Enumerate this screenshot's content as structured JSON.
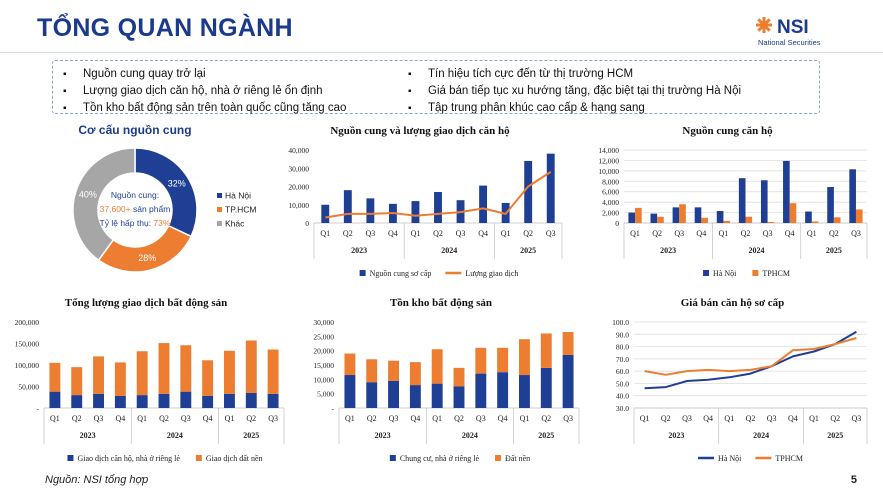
{
  "header": {
    "title": "TỔNG QUAN NGÀNH",
    "logo_text": "NSI",
    "logo_subtext": "National Securities"
  },
  "bullets": {
    "left": [
      "Nguồn cung quay trở lại",
      "Lượng giao dịch căn hộ, nhà ở riêng lẻ ổn định",
      "Tồn kho bất động sản trên toàn quốc cũng tăng cao"
    ],
    "right": [
      "Tín hiệu tích cực đến từ thị trường HCM",
      "Giá bán tiếp tục xu hướng tăng, đặc biệt tại thị trường Hà Nội",
      "Tập trung phân khúc cao cấp & hạng sang"
    ]
  },
  "chart_data": [
    {
      "type": "pie",
      "title": "Cơ cấu nguồn cung",
      "categories": [
        "Hà Nội",
        "TP.HCM",
        "Khác"
      ],
      "values": [
        32,
        28,
        40
      ],
      "value_labels": [
        "32%",
        "28%",
        "40%"
      ],
      "colors": [
        "#1f3f94",
        "#ed7d31",
        "#a6a6a6"
      ],
      "center_text": [
        [
          {
            "text": "Nguồn cung:",
            "color": "#1f3f94"
          }
        ],
        [
          {
            "text": "37,600+",
            "color": "#ed7d31"
          },
          {
            "text": " sản phẩm",
            "color": "#1f3f94"
          }
        ],
        [
          {
            "text": "Tỷ lệ hấp thụ: ",
            "color": "#1f3f94"
          },
          {
            "text": "73%",
            "color": "#ed7d31"
          }
        ]
      ]
    },
    {
      "type": "bar",
      "title": "Nguồn cung và lượng giao dịch căn hộ",
      "categories": [
        "Q1",
        "Q2",
        "Q3",
        "Q4",
        "Q1",
        "Q2",
        "Q3",
        "Q4",
        "Q1",
        "Q2",
        "Q3"
      ],
      "x_groups": [
        "2023",
        "2024",
        "2025"
      ],
      "ylim": [
        0,
        40000
      ],
      "yticks": [
        0,
        {
          "value": 10000,
          "label": "10,000"
        },
        {
          "value": 20000,
          "label": "20,000"
        },
        {
          "value": 30000,
          "label": "30,000"
        },
        {
          "value": 40000,
          "label": "40,000"
        }
      ],
      "grid": false,
      "series": [
        {
          "name": "Nguồn cung sơ cấp",
          "color": "#1f3f94",
          "values": [
            10000,
            18000,
            13500,
            10500,
            12000,
            17000,
            12500,
            20500,
            11000,
            34000,
            38000
          ]
        },
        {
          "name": "Lượng giao dịch",
          "color": "#ed7d31",
          "type": "line",
          "values": [
            3000,
            5000,
            5000,
            5500,
            4000,
            5000,
            6000,
            8000,
            5000,
            20000,
            28000
          ]
        }
      ]
    },
    {
      "type": "bar",
      "title": "Nguồn cung căn hộ",
      "categories": [
        "Q1",
        "Q2",
        "Q3",
        "Q4",
        "Q1",
        "Q2",
        "Q3",
        "Q4",
        "Q1",
        "Q2",
        "Q3"
      ],
      "x_groups": [
        "2023",
        "2024",
        "2025"
      ],
      "ylim": [
        0,
        14000
      ],
      "yticks": [
        0,
        {
          "value": 2000,
          "label": "2,000"
        },
        {
          "value": 4000,
          "label": "4,000"
        },
        {
          "value": 6000,
          "label": "6,000"
        },
        {
          "value": 8000,
          "label": "8,000"
        },
        {
          "value": 10000,
          "label": "10,000"
        },
        {
          "value": 12000,
          "label": "12,000"
        },
        {
          "value": 14000,
          "label": "14,000"
        }
      ],
      "grid": true,
      "series": [
        {
          "name": "Hà Nội",
          "color": "#1f3f94",
          "values": [
            2000,
            1800,
            3000,
            3000,
            2300,
            8600,
            8200,
            11900,
            2200,
            6900,
            10300
          ]
        },
        {
          "name": "TPHCM",
          "color": "#ed7d31",
          "values": [
            2900,
            1200,
            3600,
            1000,
            400,
            1200,
            200,
            3800,
            300,
            1100,
            2600
          ]
        }
      ]
    },
    {
      "type": "bar",
      "stacked": true,
      "title": "Tổng lượng giao dịch bất động sản",
      "categories": [
        "Q1",
        "Q2",
        "Q3",
        "Q4",
        "Q1",
        "Q2",
        "Q3",
        "Q4",
        "Q1",
        "Q2",
        "Q3"
      ],
      "x_groups": [
        "2023",
        "2024",
        "2025"
      ],
      "ylim": [
        0,
        200000
      ],
      "yticks": [
        {
          "value": 0,
          "label": "-"
        },
        {
          "value": 50000,
          "label": "50,000"
        },
        {
          "value": 100000,
          "label": "100,000"
        },
        {
          "value": 150000,
          "label": "150,000"
        },
        {
          "value": 200000,
          "label": "200,000"
        }
      ],
      "grid": false,
      "series": [
        {
          "name": "Giao dịch căn hộ, nhà ở riêng lẻ",
          "color": "#1f3f94",
          "values": [
            38000,
            30000,
            33000,
            28000,
            30000,
            33000,
            38000,
            28000,
            33000,
            35000,
            33000
          ]
        },
        {
          "name": "Giao dịch đất nền",
          "color": "#ed7d31",
          "values": [
            67000,
            65000,
            87000,
            78000,
            102000,
            118000,
            108000,
            83000,
            100000,
            122000,
            103000
          ]
        }
      ]
    },
    {
      "type": "bar",
      "stacked": true,
      "title": "Tồn kho bất động sản",
      "categories": [
        "Q1",
        "Q2",
        "Q3",
        "Q4",
        "Q1",
        "Q2",
        "Q3",
        "Q4",
        "Q1",
        "Q2",
        "Q3"
      ],
      "x_groups": [
        "2023",
        "2024",
        "2025"
      ],
      "ylim": [
        0,
        30000
      ],
      "yticks": [
        {
          "value": 0,
          "label": "-"
        },
        {
          "value": 5000,
          "label": "5,000"
        },
        {
          "value": 10000,
          "label": "10,000"
        },
        {
          "value": 15000,
          "label": "15,000"
        },
        {
          "value": 20000,
          "label": "20,000"
        },
        {
          "value": 25000,
          "label": "25,000"
        },
        {
          "value": 30000,
          "label": "30,000"
        }
      ],
      "grid": false,
      "series": [
        {
          "name": "Chung cư, nhà ở riêng lẻ",
          "color": "#1f3f94",
          "values": [
            11500,
            9000,
            9500,
            8000,
            8500,
            7500,
            12000,
            12500,
            11500,
            14000,
            18500
          ]
        },
        {
          "name": "Đất nền",
          "color": "#ed7d31",
          "values": [
            7500,
            8000,
            7000,
            8000,
            12000,
            6500,
            9000,
            8500,
            12500,
            12000,
            8000
          ]
        }
      ]
    },
    {
      "type": "line",
      "title": "Giá bán căn hộ sơ cấp",
      "categories": [
        "Q1",
        "Q2",
        "Q3",
        "Q4",
        "Q1",
        "Q2",
        "Q3",
        "Q4",
        "Q1",
        "Q2",
        "Q3"
      ],
      "x_groups": [
        "2023",
        "2024",
        "2025"
      ],
      "ylim": [
        30,
        100
      ],
      "yticks": [
        {
          "value": 30,
          "label": "30.0"
        },
        {
          "value": 40,
          "label": "40.0"
        },
        {
          "value": 50,
          "label": "50.0"
        },
        {
          "value": 60,
          "label": "60.0"
        },
        {
          "value": 70,
          "label": "70.0"
        },
        {
          "value": 80,
          "label": "80.0"
        },
        {
          "value": 90,
          "label": "90.0"
        },
        {
          "value": 100,
          "label": "100.0"
        }
      ],
      "grid": true,
      "series": [
        {
          "name": "Hà Nội",
          "color": "#1f3f94",
          "values": [
            46,
            47,
            52,
            53,
            55,
            58,
            64,
            72,
            76,
            82,
            92
          ]
        },
        {
          "name": "TPHCM",
          "color": "#ed7d31",
          "values": [
            60,
            57,
            60,
            61,
            60,
            61,
            64,
            77,
            78,
            82,
            87
          ]
        }
      ]
    }
  ],
  "footer": {
    "source": "Nguồn: NSI tổng hợp",
    "page": "5"
  }
}
